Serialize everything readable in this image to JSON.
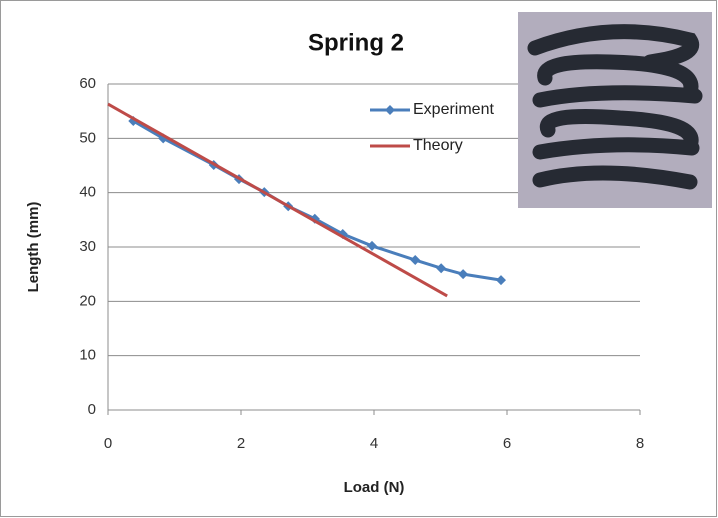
{
  "chart_data": {
    "type": "line",
    "title": "Spring 2",
    "x_label": "Load (N)",
    "y_label": "Length (mm)",
    "xlim": [
      0,
      8
    ],
    "xticks": [
      0,
      2,
      4,
      6,
      8
    ],
    "ylim": [
      0,
      60
    ],
    "yticks": [
      0,
      10,
      20,
      30,
      40,
      50,
      60
    ],
    "grid": true,
    "legend": "upper right",
    "series": [
      {
        "name": "Experiment",
        "color": "#4a7ebb",
        "marker": "diamond",
        "x": [
          0.38,
          0.83,
          1.59,
          1.97,
          2.35,
          2.71,
          3.11,
          3.53,
          3.97,
          4.62,
          5.01,
          5.34,
          5.91
        ],
        "values": [
          53.2,
          50,
          45.1,
          42.5,
          40.1,
          37.5,
          35.2,
          32.4,
          30.2,
          27.6,
          26.1,
          25,
          23.9
        ]
      },
      {
        "name": "Theory",
        "color": "#be4b48",
        "marker": "none",
        "x": [
          0,
          5.1
        ],
        "values": [
          56.3,
          21
        ]
      }
    ]
  }
}
